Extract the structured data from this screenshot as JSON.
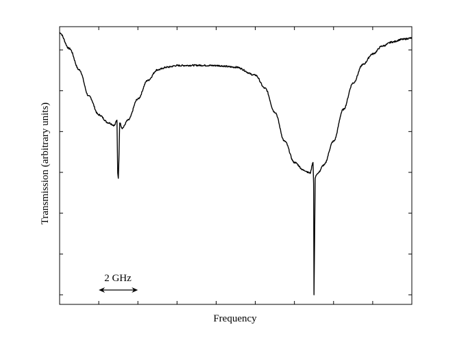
{
  "chart_data": {
    "type": "line",
    "title": "",
    "xlabel": "Frequency",
    "ylabel": "Transmission (arbitrary units)",
    "xlim": [
      0,
      18
    ],
    "ylim": [
      0,
      1
    ],
    "grid": false,
    "x_ticks_count": 9,
    "y_ticks_count": 7,
    "scale_bar": {
      "label": "2 GHz",
      "length_ghz": 2,
      "start_ghz": 2
    },
    "series": [
      {
        "x": [
          0,
          0.5,
          1,
          1.5,
          2,
          2.5,
          2.8,
          2.93,
          2.97,
          3.0,
          3.03,
          3.07,
          3.2,
          3.5,
          4,
          4.5,
          5,
          5.5,
          6,
          7,
          8,
          9,
          10,
          10.5,
          11,
          11.5,
          12,
          12.5,
          12.8,
          12.95,
          12.98,
          13.0,
          13.03,
          13.06,
          13.1,
          13.2,
          13.5,
          14,
          14.5,
          15,
          15.5,
          16,
          16.5,
          17,
          17.5,
          18
        ],
        "y": [
          0.99,
          0.93,
          0.85,
          0.75,
          0.68,
          0.65,
          0.64,
          0.66,
          0.46,
          0.44,
          0.51,
          0.65,
          0.63,
          0.66,
          0.74,
          0.81,
          0.85,
          0.86,
          0.866,
          0.867,
          0.866,
          0.86,
          0.83,
          0.78,
          0.69,
          0.58,
          0.5,
          0.47,
          0.46,
          0.5,
          0.42,
          0.0,
          0.2,
          0.44,
          0.45,
          0.46,
          0.49,
          0.58,
          0.7,
          0.8,
          0.87,
          0.91,
          0.94,
          0.955,
          0.965,
          0.97
        ]
      }
    ]
  }
}
